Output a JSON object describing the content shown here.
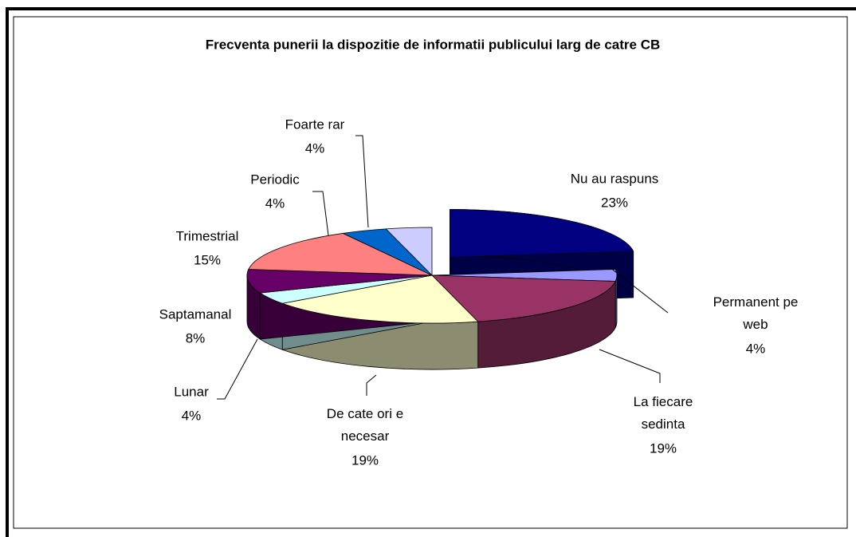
{
  "chart_data": {
    "type": "pie",
    "title": "Frecventa punerii la dispozitie de informatii publicului larg de catre CB",
    "categories": [
      "Nu au raspuns",
      "Permanent pe web",
      "La fiecare sedinta",
      "De cate ori e necesar",
      "Lunar",
      "Saptamanal",
      "Trimestrial",
      "Periodic",
      "Foarte rar"
    ],
    "values": [
      23,
      4,
      19,
      19,
      4,
      8,
      15,
      4,
      4
    ],
    "value_labels": [
      "23%",
      "4%",
      "19%",
      "19%",
      "4%",
      "8%",
      "15%",
      "4%",
      "4%"
    ],
    "colors": [
      "#000080",
      "#9999ff",
      "#993366",
      "#ffffcc",
      "#ccffff",
      "#660066",
      "#ff8080",
      "#0066cc",
      "#ccccff"
    ],
    "exploded": [
      0
    ]
  }
}
